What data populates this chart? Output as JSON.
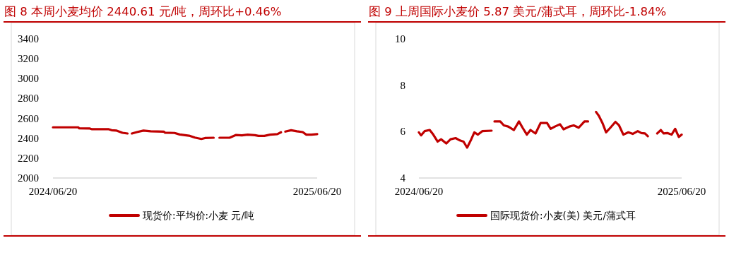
{
  "chart_data": [
    {
      "type": "line",
      "title": "图 8 本周小麦均价 2440.61 元/吨，周环比+0.46%",
      "legend": "bottom",
      "xlim": [
        "2024-06-20",
        "2025-06-20"
      ],
      "xticks": [
        {
          "value": "2024-06-20",
          "label": "2024/06/20"
        },
        {
          "value": "2025-06-20",
          "label": "2025/06/20"
        }
      ],
      "ylim": [
        2000,
        3400
      ],
      "yticks": [
        2000,
        2200,
        2400,
        2600,
        2800,
        3000,
        3200,
        3400
      ],
      "x": [
        "2024-06-20",
        "2024-07-25",
        "2024-07-26",
        "2024-08-10",
        "2024-08-13",
        "2024-09-05",
        "2024-09-09",
        "2024-09-16",
        "2024-09-24",
        "2024-10-01",
        "2024-10-05",
        "2024-10-07",
        "2024-10-14",
        "2024-10-23",
        "2024-11-02",
        "2024-11-20",
        "2024-11-22",
        "2024-12-05",
        "2024-12-12",
        "2024-12-25",
        "2025-01-02",
        "2025-01-11",
        "2025-01-16",
        "2025-01-28",
        "2025-02-01",
        "2025-02-05",
        "2025-02-19",
        "2025-02-28",
        "2025-03-08",
        "2025-03-16",
        "2025-03-26",
        "2025-03-31",
        "2025-04-08",
        "2025-04-16",
        "2025-04-26",
        "2025-05-01",
        "2025-05-04",
        "2025-05-07",
        "2025-05-15",
        "2025-05-23",
        "2025-05-31",
        "2025-06-05",
        "2025-06-12",
        "2025-06-20"
      ],
      "series": [
        {
          "name": "现货价:平均价:小麦 元/吨",
          "color": "#c00000",
          "values": [
            2510,
            2510,
            2500,
            2498,
            2491,
            2491,
            2481,
            2477,
            2455,
            2448,
            null,
            2448,
            2462,
            2477,
            2470,
            2467,
            2455,
            2453,
            2438,
            2426,
            2407,
            2393,
            2402,
            2405,
            null,
            2405,
            2405,
            2433,
            2429,
            2436,
            2431,
            2424,
            2424,
            2436,
            2441,
            2460,
            null,
            2467,
            2481,
            2470,
            2462,
            2436,
            2436,
            2441
          ]
        }
      ]
    },
    {
      "type": "line",
      "title": "图 9 上周国际小麦价 5.87 美元/蒲式耳，周环比-1.84%",
      "legend": "bottom",
      "xlim": [
        "2024-06-20",
        "2025-06-20"
      ],
      "xticks": [
        {
          "value": "2024-06-20",
          "label": "2024/06/20"
        },
        {
          "value": "2025-06-20",
          "label": "2025/06/20"
        }
      ],
      "ylim": [
        4,
        10
      ],
      "yticks": [
        4,
        6,
        8,
        10
      ],
      "x": [
        "2024-06-20",
        "2024-06-23",
        "2024-06-28",
        "2024-07-05",
        "2024-07-10",
        "2024-07-16",
        "2024-07-21",
        "2024-07-28",
        "2024-08-03",
        "2024-08-10",
        "2024-08-16",
        "2024-08-21",
        "2024-08-26",
        "2024-08-31",
        "2024-09-05",
        "2024-09-10",
        "2024-09-16",
        "2024-09-29",
        "2024-10-01",
        "2024-10-03",
        "2024-10-11",
        "2024-10-16",
        "2024-10-22",
        "2024-10-30",
        "2024-11-06",
        "2024-11-11",
        "2024-11-17",
        "2024-11-22",
        "2024-11-29",
        "2024-12-06",
        "2024-12-15",
        "2024-12-20",
        "2024-12-26",
        "2025-01-02",
        "2025-01-07",
        "2025-01-15",
        "2025-01-21",
        "2025-01-28",
        "2025-02-05",
        "2025-02-10",
        "2025-02-15",
        "2025-02-21",
        "2025-02-25",
        "2025-03-02",
        "2025-03-07",
        "2025-03-13",
        "2025-03-20",
        "2025-03-25",
        "2025-03-31",
        "2025-04-07",
        "2025-04-13",
        "2025-04-20",
        "2025-04-25",
        "2025-04-30",
        "2025-05-04",
        "2025-05-11",
        "2025-05-17",
        "2025-05-22",
        "2025-05-26",
        "2025-05-31",
        "2025-06-06",
        "2025-06-11",
        "2025-06-16",
        "2025-06-20"
      ],
      "series": [
        {
          "name": "国际现货价:小麦(美) 美元/蒲式耳",
          "color": "#c00000",
          "values": [
            5.97,
            5.84,
            6.02,
            6.07,
            5.87,
            5.57,
            5.67,
            5.49,
            5.67,
            5.72,
            5.62,
            5.57,
            5.31,
            5.62,
            5.97,
            5.87,
            6.02,
            6.04,
            null,
            6.44,
            6.44,
            6.27,
            6.22,
            6.07,
            6.44,
            6.17,
            5.87,
            6.07,
            5.92,
            6.37,
            6.37,
            6.12,
            6.22,
            6.32,
            6.1,
            6.22,
            6.27,
            6.17,
            6.44,
            6.44,
            null,
            6.85,
            6.68,
            6.37,
            5.97,
            6.17,
            6.42,
            6.27,
            5.87,
            5.97,
            5.9,
            6.02,
            5.94,
            5.92,
            5.8,
            null,
            5.92,
            6.07,
            5.92,
            5.94,
            5.87,
            6.12,
            5.77,
            5.87
          ]
        }
      ]
    }
  ]
}
